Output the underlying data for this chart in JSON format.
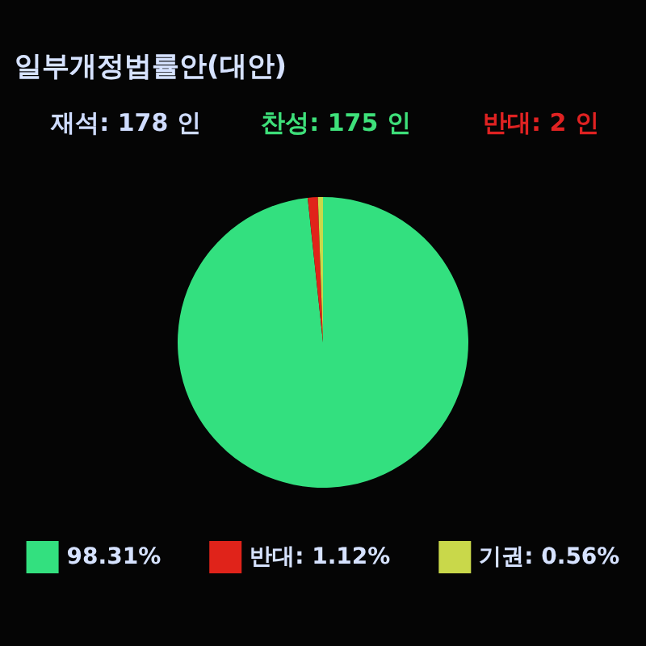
{
  "chart_data": {
    "type": "pie",
    "title": "일부개정법률안(대안)",
    "categories": [
      null,
      "반대",
      "기권"
    ],
    "values": [
      98.31,
      1.12,
      0.56
    ],
    "value_labels": [
      "98.31%",
      "1.12%",
      "0.56%"
    ],
    "colors": [
      "#33e07f",
      "#e0231a",
      "#c9d84a"
    ],
    "legend": "bottom",
    "annotations": [
      "재석: 178 인",
      "찬성: 175 인",
      "반대: 2 인"
    ]
  }
}
